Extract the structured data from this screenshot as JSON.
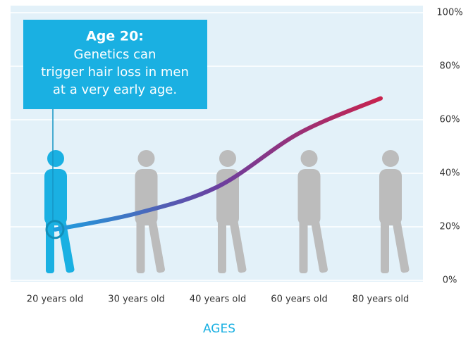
{
  "chart_data": {
    "type": "line",
    "x_label": "AGES",
    "categories": [
      "20 years old",
      "30 years old",
      "40 years old",
      "60 years old",
      "80 years old"
    ],
    "series": [
      {
        "values": [
          19,
          25,
          35,
          55,
          68
        ],
        "colors": [
          "#1e9fe0",
          "#6b3fa0",
          "#c8234e"
        ]
      }
    ],
    "ylim": [
      0,
      100
    ],
    "yticks": [
      {
        "value": 0,
        "label": "0%"
      },
      {
        "value": 20,
        "label": "20%"
      },
      {
        "value": 40,
        "label": "40%"
      },
      {
        "value": 60,
        "label": "60%"
      },
      {
        "value": 80,
        "label": "80%"
      },
      {
        "value": 100,
        "label": "100%"
      }
    ],
    "grid": true,
    "annotation": {
      "title": "Age 20:",
      "lines": [
        "Genetics can",
        "trigger hair loss in men",
        "at a very early age."
      ]
    }
  }
}
